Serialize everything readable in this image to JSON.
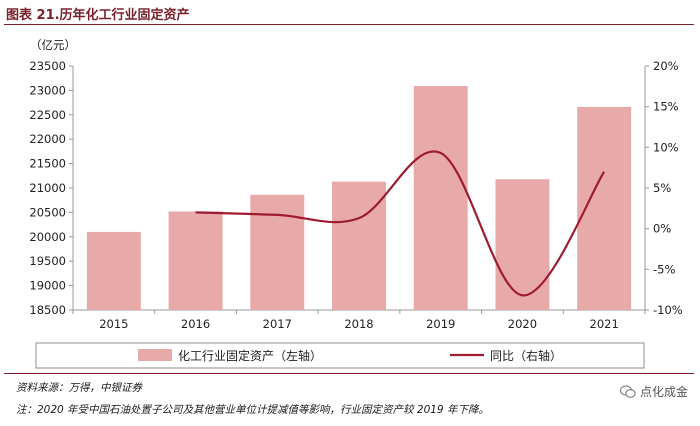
{
  "header": {
    "title": "图表 21.历年化工行业固定资产",
    "unit": "（亿元）"
  },
  "footer": {
    "source": "资料来源：万得，中银证券",
    "note": "注：2020 年受中国石油处置子公司及其他营业单位计提减值等影响，行业固定资产较 2019 年下降。",
    "watermark": "点化成金",
    "watermark_icon": "wechat-icon"
  },
  "colors": {
    "bar": "#e8a9a9",
    "line": "#9e1b32",
    "axis": "#999999",
    "title": "#7a1f2b"
  },
  "chart_data": {
    "type": "bar",
    "categories": [
      "2015",
      "2016",
      "2017",
      "2018",
      "2019",
      "2020",
      "2021"
    ],
    "series": [
      {
        "name": "化工行业固定资产（左轴）",
        "type": "bar",
        "axis": "left",
        "values": [
          20100,
          20520,
          20860,
          21130,
          23090,
          21180,
          22660
        ]
      },
      {
        "name": "同比（右轴）",
        "type": "line",
        "axis": "right",
        "values": [
          null,
          2.0,
          1.7,
          1.3,
          9.3,
          -8.2,
          7.0
        ]
      }
    ],
    "y_left": {
      "ylim": [
        18500,
        23500
      ],
      "ticks": [
        18500,
        19000,
        19500,
        20000,
        20500,
        21000,
        21500,
        22000,
        22500,
        23000,
        23500
      ]
    },
    "y_right": {
      "ylim": [
        -10,
        20
      ],
      "ticks": [
        -10,
        -5,
        0,
        5,
        10,
        15,
        20
      ],
      "tick_labels": [
        "-10%",
        "-5%",
        "0%",
        "5%",
        "10%",
        "15%",
        "20%"
      ]
    },
    "grid": false,
    "legend_placement": "bottom"
  }
}
